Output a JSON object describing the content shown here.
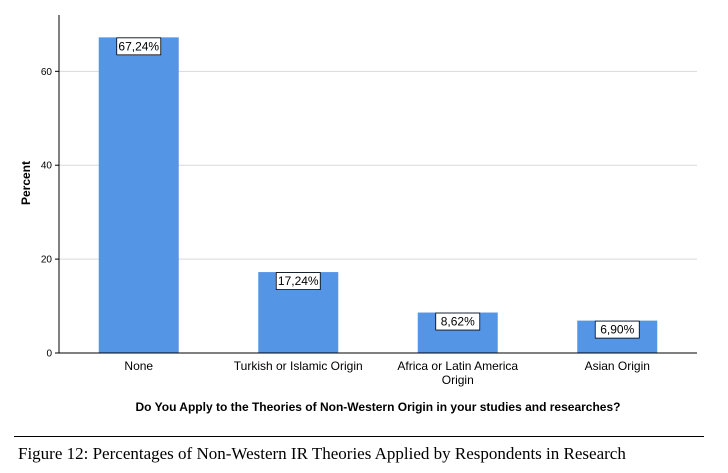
{
  "chart_data": {
    "type": "bar",
    "categories": [
      "None",
      "Turkish or Islamic Origin",
      "Africa or Latin America Origin",
      "Asian Origin"
    ],
    "values": [
      67.24,
      17.24,
      8.62,
      6.9
    ],
    "data_labels": [
      "67,24%",
      "17,24%",
      "8,62%",
      "6,90%"
    ],
    "xlabel": "Do You Apply to the Theories of Non-Western Origin in your studies and researches?",
    "ylabel": "Percent",
    "ylim": [
      0,
      72
    ],
    "yticks": [
      0,
      20,
      40,
      60
    ],
    "grid": true,
    "bar_color": "#5595e6"
  },
  "caption": "Figure 12: Percentages of Non-Western IR Theories Applied by Respondents in Research"
}
